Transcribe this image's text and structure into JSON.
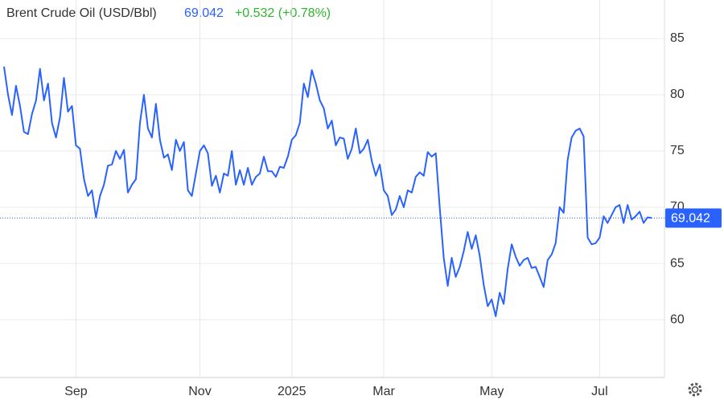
{
  "chart_data": {
    "type": "line",
    "title": "Brent Crude Oil (USD/Bbl)",
    "price": 69.042,
    "change": "+0.532 (+0.78%)",
    "categories": [
      null,
      null,
      null,
      null,
      null,
      null,
      null,
      null,
      null,
      null,
      null,
      null,
      null,
      null,
      null,
      null,
      null,
      null,
      "Sep",
      null,
      null,
      null,
      null,
      null,
      null,
      null,
      null,
      null,
      null,
      null,
      null,
      null,
      null,
      null,
      null,
      null,
      null,
      null,
      null,
      null,
      null,
      null,
      null,
      null,
      null,
      null,
      null,
      null,
      null,
      "Nov",
      null,
      null,
      null,
      null,
      null,
      null,
      null,
      null,
      null,
      null,
      null,
      null,
      null,
      null,
      null,
      null,
      null,
      null,
      null,
      null,
      null,
      null,
      "2025",
      null,
      null,
      null,
      null,
      null,
      null,
      null,
      null,
      null,
      null,
      null,
      null,
      null,
      null,
      null,
      null,
      null,
      null,
      null,
      null,
      null,
      null,
      "Mar",
      null,
      null,
      null,
      null,
      null,
      null,
      null,
      null,
      null,
      null,
      null,
      null,
      null,
      null,
      null,
      null,
      null,
      null,
      null,
      null,
      null,
      null,
      null,
      null,
      null,
      null,
      "May",
      null,
      null,
      null,
      null,
      null,
      null,
      null,
      null,
      null,
      null,
      null,
      null,
      null,
      null,
      null,
      null,
      null,
      null,
      null,
      null,
      null,
      null,
      null,
      null,
      null,
      null,
      "Jul",
      null,
      null,
      null,
      null,
      null,
      null,
      null,
      null,
      null,
      null,
      null,
      null,
      null
    ],
    "series": [
      {
        "name": "Brent Crude Oil",
        "color": "#2962ff",
        "values": [
          82.5,
          80,
          78.2,
          80.8,
          79,
          76.7,
          76.5,
          78.3,
          79.5,
          82.3,
          79.5,
          81,
          77.5,
          76.2,
          78,
          81.5,
          78.5,
          79,
          75.5,
          75.2,
          72.5,
          71,
          71.5,
          69.1,
          71,
          72,
          73.7,
          73.8,
          75,
          74.3,
          75.1,
          71.3,
          72,
          72.5,
          77.5,
          80,
          77,
          76.2,
          79.2,
          76,
          74.4,
          74.7,
          73.3,
          76,
          75,
          75.8,
          71.5,
          71,
          73,
          75,
          75.5,
          74.8,
          71.9,
          72.8,
          71.3,
          73,
          72.8,
          75,
          72,
          73.3,
          72,
          73.5,
          72,
          72.7,
          73,
          74.5,
          73.2,
          73.2,
          72.7,
          73.6,
          73.5,
          74.5,
          76,
          76.4,
          77.5,
          81,
          79.8,
          82.2,
          81,
          79.5,
          78.8,
          77,
          77.7,
          75.5,
          76.2,
          76.1,
          74.3,
          75.2,
          77,
          74.8,
          75.2,
          76,
          74.1,
          72.8,
          73.8,
          71.5,
          71,
          69.3,
          69.8,
          71,
          70,
          71.5,
          71.3,
          72.7,
          73.1,
          72.8,
          74.9,
          74.5,
          74.8,
          70,
          65.5,
          63,
          65.5,
          63.8,
          64.7,
          66.1,
          67.8,
          66.3,
          67.5,
          65.7,
          63.1,
          61.2,
          61.8,
          60.3,
          62.4,
          61.4,
          64.5,
          66.7,
          65.6,
          64.8,
          65.3,
          65.5,
          64.6,
          64.7,
          63.8,
          62.9,
          65.3,
          65.8,
          66.8,
          70,
          69.5,
          74.2,
          76.2,
          76.8,
          77,
          76.3,
          67.3,
          66.7,
          66.8,
          67.3,
          69.2,
          68.6,
          69.3,
          70,
          70.2,
          68.6,
          70.2,
          68.9,
          69.2,
          69.6,
          68.6,
          69.1,
          69.042
        ]
      }
    ],
    "ylim": [
      54.86,
      88.43
    ],
    "yticks": [
      60,
      65,
      70,
      75,
      80,
      85
    ],
    "grid": true
  }
}
